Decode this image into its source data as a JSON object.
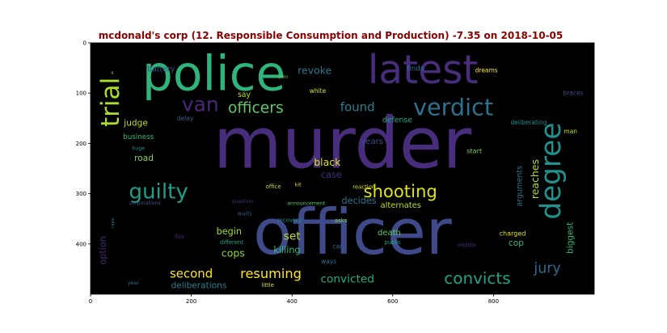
{
  "chart_data": {
    "type": "wordcloud",
    "title": "mcdonald's corp (12. Responsible Consumption and Production) -7.35 on 2018-10-05",
    "title_color": "#8b0000",
    "background": "#000000",
    "x_ticks": [
      "0",
      "200",
      "400",
      "600",
      "800"
    ],
    "y_ticks": [
      "0",
      "100",
      "200",
      "300",
      "400"
    ],
    "xlim": [
      0,
      1000
    ],
    "ylim": [
      500,
      0
    ],
    "words": [
      {
        "text": "murder",
        "x": 500,
        "y": 200,
        "size": 140,
        "color": "#472d7b",
        "rotate": 0
      },
      {
        "text": "officer",
        "x": 520,
        "y": 378,
        "size": 125,
        "color": "#3e4a89",
        "rotate": 0
      },
      {
        "text": "police",
        "x": 245,
        "y": 62,
        "size": 96,
        "color": "#2fb47c",
        "rotate": 0
      },
      {
        "text": "latest",
        "x": 660,
        "y": 55,
        "size": 78,
        "color": "#472d7b",
        "rotate": 0
      },
      {
        "text": "degree",
        "x": 915,
        "y": 255,
        "size": 55,
        "color": "#21918c",
        "rotate": -90
      },
      {
        "text": "verdict",
        "x": 720,
        "y": 128,
        "size": 46,
        "color": "#2c728e",
        "rotate": 0
      },
      {
        "text": "trial",
        "x": 40,
        "y": 118,
        "size": 50,
        "color": "#addc30",
        "rotate": -90
      },
      {
        "text": "van",
        "x": 218,
        "y": 122,
        "size": 40,
        "color": "#482878",
        "rotate": 0
      },
      {
        "text": "officers",
        "x": 328,
        "y": 130,
        "size": 30,
        "color": "#5ec962",
        "rotate": 0
      },
      {
        "text": "guilty",
        "x": 135,
        "y": 297,
        "size": 42,
        "color": "#1f9e89",
        "rotate": 0
      },
      {
        "text": "shooting",
        "x": 615,
        "y": 295,
        "size": 34,
        "color": "#dde318",
        "rotate": 0
      },
      {
        "text": "convicts",
        "x": 768,
        "y": 468,
        "size": 32,
        "color": "#20a486",
        "rotate": 0
      },
      {
        "text": "convicted",
        "x": 510,
        "y": 470,
        "size": 22,
        "color": "#28ae80",
        "rotate": 0
      },
      {
        "text": "resuming",
        "x": 358,
        "y": 459,
        "size": 26,
        "color": "#fde725",
        "rotate": 0
      },
      {
        "text": "second",
        "x": 200,
        "y": 459,
        "size": 24,
        "color": "#fde725",
        "rotate": 0
      },
      {
        "text": "jury",
        "x": 907,
        "y": 449,
        "size": 28,
        "color": "#31688e",
        "rotate": 0
      },
      {
        "text": "found",
        "x": 530,
        "y": 128,
        "size": 24,
        "color": "#26828e",
        "rotate": 0
      },
      {
        "text": "revoke",
        "x": 445,
        "y": 55,
        "size": 20,
        "color": "#2a788e",
        "rotate": 0
      },
      {
        "text": "battery",
        "x": 140,
        "y": 53,
        "size": 15,
        "color": "#3b528b",
        "rotate": 0
      },
      {
        "text": "finds",
        "x": 645,
        "y": 52,
        "size": 14,
        "color": "#2c728e",
        "rotate": 0
      },
      {
        "text": "dreams",
        "x": 786,
        "y": 55,
        "size": 12,
        "color": "#fde725",
        "rotate": 0
      },
      {
        "text": "jobs",
        "x": 383,
        "y": 68,
        "size": 9,
        "color": "#7ad151",
        "rotate": 0
      },
      {
        "text": "g",
        "x": 43,
        "y": 60,
        "size": 7,
        "color": "#b5de2b",
        "rotate": 0
      },
      {
        "text": "white",
        "x": 451,
        "y": 96,
        "size": 12,
        "color": "#d8e219",
        "rotate": 0
      },
      {
        "text": "say",
        "x": 305,
        "y": 104,
        "size": 15,
        "color": "#b5de2b",
        "rotate": 0
      },
      {
        "text": "braces",
        "x": 958,
        "y": 100,
        "size": 12,
        "color": "#3e4a89",
        "rotate": 0
      },
      {
        "text": "defense",
        "x": 609,
        "y": 154,
        "size": 15,
        "color": "#20a486",
        "rotate": 0
      },
      {
        "text": "deliberating",
        "x": 870,
        "y": 158,
        "size": 12,
        "color": "#21918c",
        "rotate": 0
      },
      {
        "text": "judge",
        "x": 90,
        "y": 160,
        "size": 17,
        "color": "#c2df23",
        "rotate": 0
      },
      {
        "text": "delay",
        "x": 188,
        "y": 150,
        "size": 12,
        "color": "#355f8d",
        "rotate": 0
      },
      {
        "text": "man",
        "x": 953,
        "y": 176,
        "size": 12,
        "color": "#c2df23",
        "rotate": 0
      },
      {
        "text": "business",
        "x": 95,
        "y": 188,
        "size": 14,
        "color": "#35b779",
        "rotate": 0
      },
      {
        "text": "years",
        "x": 559,
        "y": 197,
        "size": 16,
        "color": "#3b528b",
        "rotate": 0
      },
      {
        "text": "huge",
        "x": 95,
        "y": 211,
        "size": 10,
        "color": "#21918c",
        "rotate": 0
      },
      {
        "text": "start",
        "x": 762,
        "y": 215,
        "size": 13,
        "color": "#7ad151",
        "rotate": 0
      },
      {
        "text": "road",
        "x": 106,
        "y": 230,
        "size": 17,
        "color": "#8fd744",
        "rotate": 0
      },
      {
        "text": "black",
        "x": 470,
        "y": 237,
        "size": 20,
        "color": "#d8e219",
        "rotate": 0
      },
      {
        "text": "reaches",
        "x": 882,
        "y": 271,
        "size": 20,
        "color": "#b5de2b",
        "rotate": -90
      },
      {
        "text": "arguments",
        "x": 852,
        "y": 285,
        "size": 15,
        "color": "#2c728e",
        "rotate": -90
      },
      {
        "text": "case",
        "x": 478,
        "y": 263,
        "size": 18,
        "color": "#472d7b",
        "rotate": 0
      },
      {
        "text": "kit",
        "x": 412,
        "y": 283,
        "size": 10,
        "color": "#dde318",
        "rotate": 0
      },
      {
        "text": "office",
        "x": 363,
        "y": 286,
        "size": 11,
        "color": "#c2df23",
        "rotate": 0
      },
      {
        "text": "reaction",
        "x": 543,
        "y": 287,
        "size": 11,
        "color": "#dde318",
        "rotate": 0
      },
      {
        "text": "decides",
        "x": 533,
        "y": 314,
        "size": 18,
        "color": "#2c728e",
        "rotate": 0
      },
      {
        "text": "question",
        "x": 302,
        "y": 316,
        "size": 10,
        "color": "#472d7b",
        "rotate": 0
      },
      {
        "text": "announcement",
        "x": 428,
        "y": 320,
        "size": 10,
        "color": "#5ec962",
        "rotate": 0
      },
      {
        "text": "alternates",
        "x": 616,
        "y": 324,
        "size": 16,
        "color": "#b5de2b",
        "rotate": 0
      },
      {
        "text": "corporations",
        "x": 108,
        "y": 319,
        "size": 10,
        "color": "#3b528b",
        "rotate": 0
      },
      {
        "text": "waits",
        "x": 306,
        "y": 340,
        "size": 11,
        "color": "#3b528b",
        "rotate": 0
      },
      {
        "text": "rape",
        "x": 45,
        "y": 358,
        "size": 9,
        "color": "#2c728e",
        "rotate": -90
      },
      {
        "text": "recovery",
        "x": 395,
        "y": 353,
        "size": 11,
        "color": "#21918c",
        "rotate": 0
      },
      {
        "text": "asks",
        "x": 497,
        "y": 354,
        "size": 11,
        "color": "#7ad151",
        "rotate": 0
      },
      {
        "text": "begin",
        "x": 275,
        "y": 375,
        "size": 18,
        "color": "#a0da39",
        "rotate": 0
      },
      {
        "text": "set",
        "x": 400,
        "y": 385,
        "size": 22,
        "color": "#c2df23",
        "rotate": 0
      },
      {
        "text": "death",
        "x": 593,
        "y": 379,
        "size": 16,
        "color": "#5ec962",
        "rotate": 0
      },
      {
        "text": "charged",
        "x": 838,
        "y": 379,
        "size": 13,
        "color": "#dde318",
        "rotate": 0
      },
      {
        "text": "option",
        "x": 25,
        "y": 413,
        "size": 18,
        "color": "#482878",
        "rotate": -90
      },
      {
        "text": "day",
        "x": 176,
        "y": 385,
        "size": 11,
        "color": "#482878",
        "rotate": 0
      },
      {
        "text": "different",
        "x": 280,
        "y": 397,
        "size": 11,
        "color": "#20a486",
        "rotate": 0
      },
      {
        "text": "killing",
        "x": 390,
        "y": 412,
        "size": 18,
        "color": "#35b779",
        "rotate": 0
      },
      {
        "text": "car",
        "x": 490,
        "y": 405,
        "size": 12,
        "color": "#31688e",
        "rotate": 0
      },
      {
        "text": "public",
        "x": 600,
        "y": 397,
        "size": 11,
        "color": "#20a486",
        "rotate": 0
      },
      {
        "text": "middle",
        "x": 747,
        "y": 403,
        "size": 11,
        "color": "#472d7b",
        "rotate": 0
      },
      {
        "text": "cop",
        "x": 845,
        "y": 399,
        "size": 17,
        "color": "#35b779",
        "rotate": 0
      },
      {
        "text": "biggest",
        "x": 953,
        "y": 388,
        "size": 17,
        "color": "#35b779",
        "rotate": -90
      },
      {
        "text": "cops",
        "x": 283,
        "y": 418,
        "size": 20,
        "color": "#8fd744",
        "rotate": 0
      },
      {
        "text": "ways",
        "x": 473,
        "y": 435,
        "size": 12,
        "color": "#2c728e",
        "rotate": 0
      },
      {
        "text": "year",
        "x": 85,
        "y": 478,
        "size": 10,
        "color": "#2c728e",
        "rotate": 0
      },
      {
        "text": "deliberations",
        "x": 215,
        "y": 483,
        "size": 17,
        "color": "#26828e",
        "rotate": 0
      },
      {
        "text": "little",
        "x": 352,
        "y": 482,
        "size": 11,
        "color": "#e5e419",
        "rotate": 0
      }
    ]
  }
}
